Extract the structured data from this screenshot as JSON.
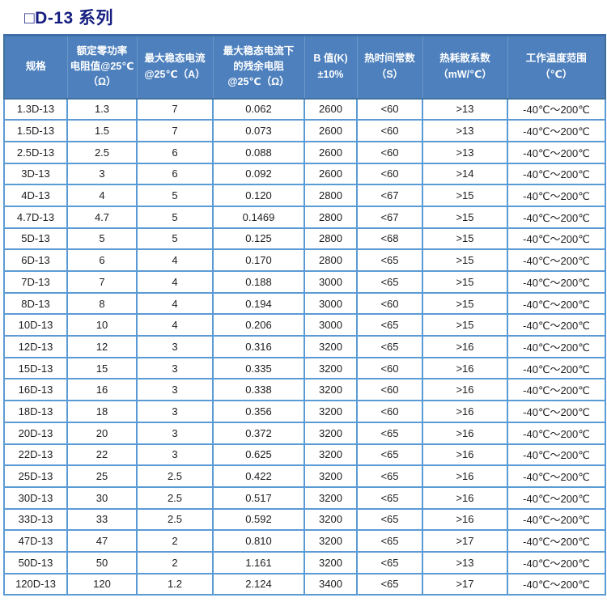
{
  "title": "□D-13 系列",
  "colors": {
    "title_text": "#151d80",
    "header_background": "#4d80bd",
    "header_text": "#ffffff",
    "cell_border": "#5b9bd5",
    "outer_border": "#41719c",
    "cell_text": "#1d1d1d"
  },
  "table": {
    "column_keys": [
      "spec",
      "rated-zero-power-resistance",
      "max-steady-state-current",
      "residual-resistance",
      "b-value",
      "thermal-time-constant",
      "dissipation-coefficient",
      "operating-temp-range"
    ],
    "headers": [
      "规格",
      "额定零功率\n电阻值@25℃\n（Ω）",
      "最大稳态电流\n@25℃（A）",
      "最大稳态电流下\n的残余电阻\n@25℃（Ω）",
      "B 值(K)\n±10%",
      "热时间常数\n（S）",
      "热耗散系数\n（mW/℃）",
      "工作温度范围\n（℃）"
    ],
    "rows": [
      [
        "1.3D-13",
        "1.3",
        "7",
        "0.062",
        "2600",
        "<60",
        ">13",
        "-40℃～200℃"
      ],
      [
        "1.5D-13",
        "1.5",
        "7",
        "0.073",
        "2600",
        "<60",
        ">13",
        "-40℃～200℃"
      ],
      [
        "2.5D-13",
        "2.5",
        "6",
        "0.088",
        "2600",
        "<60",
        ">13",
        "-40℃～200℃"
      ],
      [
        "3D-13",
        "3",
        "6",
        "0.092",
        "2600",
        "<60",
        ">14",
        "-40℃～200℃"
      ],
      [
        "4D-13",
        "4",
        "5",
        "0.120",
        "2800",
        "<67",
        ">15",
        "-40℃～200℃"
      ],
      [
        "4.7D-13",
        "4.7",
        "5",
        "0.1469",
        "2800",
        "<67",
        ">15",
        "-40℃～200℃"
      ],
      [
        "5D-13",
        "5",
        "5",
        "0.125",
        "2800",
        "<68",
        ">15",
        "-40℃～200℃"
      ],
      [
        "6D-13",
        "6",
        "4",
        "0.170",
        "2800",
        "<65",
        ">15",
        "-40℃～200℃"
      ],
      [
        "7D-13",
        "7",
        "4",
        "0.188",
        "3000",
        "<65",
        ">15",
        "-40℃～200℃"
      ],
      [
        "8D-13",
        "8",
        "4",
        "0.194",
        "3000",
        "<60",
        ">15",
        "-40℃～200℃"
      ],
      [
        "10D-13",
        "10",
        "4",
        "0.206",
        "3000",
        "<65",
        ">15",
        "-40℃～200℃"
      ],
      [
        "12D-13",
        "12",
        "3",
        "0.316",
        "3200",
        "<65",
        ">16",
        "-40℃～200℃"
      ],
      [
        "15D-13",
        "15",
        "3",
        "0.335",
        "3200",
        "<60",
        ">16",
        "-40℃～200℃"
      ],
      [
        "16D-13",
        "16",
        "3",
        "0.338",
        "3200",
        "<60",
        ">16",
        "-40℃～200℃"
      ],
      [
        "18D-13",
        "18",
        "3",
        "0.356",
        "3200",
        "<60",
        ">16",
        "-40℃～200℃"
      ],
      [
        "20D-13",
        "20",
        "3",
        "0.372",
        "3200",
        "<65",
        ">16",
        "-40℃～200℃"
      ],
      [
        "22D-13",
        "22",
        "3",
        "0.625",
        "3200",
        "<65",
        ">16",
        "-40℃～200℃"
      ],
      [
        "25D-13",
        "25",
        "2.5",
        "0.422",
        "3200",
        "<65",
        ">16",
        "-40℃～200℃"
      ],
      [
        "30D-13",
        "30",
        "2.5",
        "0.517",
        "3200",
        "<65",
        ">16",
        "-40℃～200℃"
      ],
      [
        "33D-13",
        "33",
        "2.5",
        "0.592",
        "3200",
        "<65",
        ">16",
        "-40℃～200℃"
      ],
      [
        "47D-13",
        "47",
        "2",
        "0.810",
        "3200",
        "<65",
        ">17",
        "-40℃～200℃"
      ],
      [
        "50D-13",
        "50",
        "2",
        "1.161",
        "3200",
        "<65",
        ">13",
        "-40℃～200℃"
      ],
      [
        "120D-13",
        "120",
        "1.2",
        "2.124",
        "3400",
        "<65",
        ">17",
        "-40℃～200℃"
      ]
    ]
  }
}
